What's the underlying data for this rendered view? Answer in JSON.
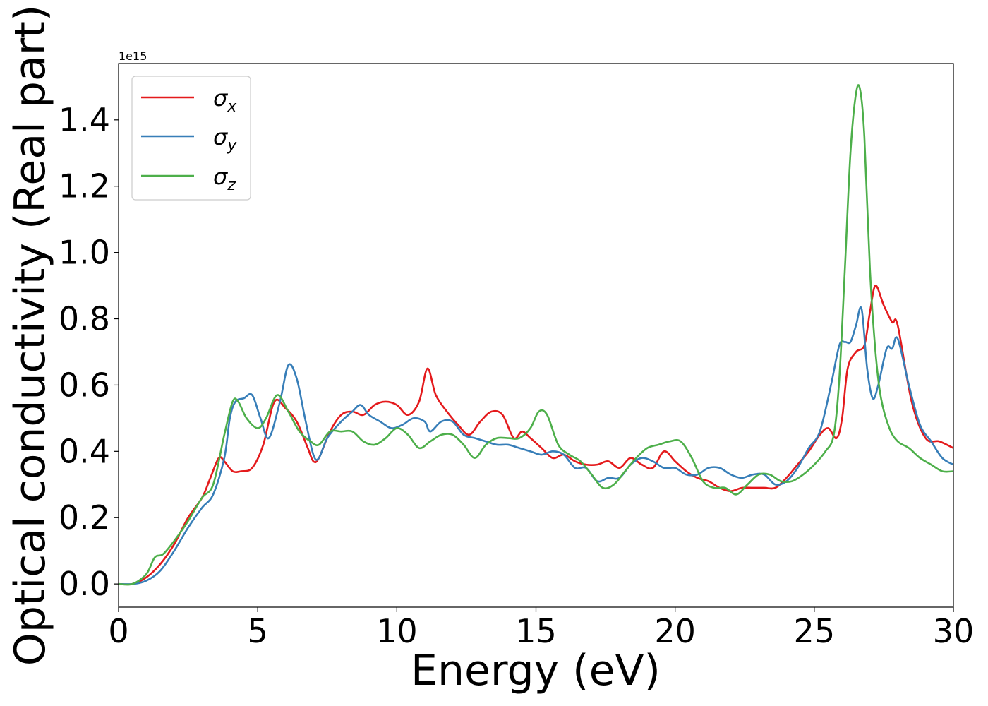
{
  "chart_data": {
    "type": "line",
    "xlabel": "Energy (eV)",
    "ylabel": "Optical conductivity (Real part)",
    "y_offset_label": "1e15",
    "y_multiplier": 1000000000000000.0,
    "xlim": [
      0,
      30
    ],
    "ylim": [
      -0.07,
      1.57
    ],
    "xticks": [
      0,
      5,
      10,
      15,
      20,
      25,
      30
    ],
    "yticks": [
      0.0,
      0.2,
      0.4,
      0.6,
      0.8,
      1.0,
      1.2,
      1.4
    ],
    "xtick_labels": [
      "0",
      "5",
      "10",
      "15",
      "20",
      "25",
      "30"
    ],
    "ytick_labels": [
      "0.0",
      "0.2",
      "0.4",
      "0.6",
      "0.8",
      "1.0",
      "1.2",
      "1.4"
    ],
    "grid": false,
    "legend_position": "top-left",
    "series": [
      {
        "name": "σx",
        "label_main": "σ",
        "label_sub": "x",
        "color": "#e41a1c",
        "x": [
          0,
          0.5,
          1,
          1.5,
          2,
          2.5,
          3,
          3.3,
          3.6,
          3.8,
          4.1,
          4.4,
          4.8,
          5.2,
          5.6,
          6,
          6.4,
          6.8,
          7,
          7.2,
          7.6,
          8,
          8.4,
          8.8,
          9.2,
          9.6,
          10,
          10.4,
          10.8,
          11.1,
          11.4,
          11.8,
          12.2,
          12.6,
          13,
          13.4,
          13.8,
          14.2,
          14.5,
          14.8,
          15.2,
          15.6,
          16,
          16.4,
          16.8,
          17.2,
          17.6,
          18,
          18.4,
          18.8,
          19.2,
          19.6,
          20,
          20.4,
          20.8,
          21.2,
          21.6,
          22,
          22.4,
          22.8,
          23.2,
          23.6,
          24,
          24.4,
          24.8,
          25.2,
          25.5,
          25.8,
          26,
          26.2,
          26.5,
          26.8,
          27,
          27.2,
          27.5,
          27.8,
          28,
          28.5,
          29,
          29.5,
          30
        ],
        "y": [
          0.0,
          0.0,
          0.02,
          0.06,
          0.12,
          0.2,
          0.26,
          0.32,
          0.38,
          0.37,
          0.34,
          0.34,
          0.35,
          0.42,
          0.55,
          0.53,
          0.49,
          0.41,
          0.37,
          0.38,
          0.46,
          0.51,
          0.52,
          0.51,
          0.54,
          0.55,
          0.54,
          0.51,
          0.55,
          0.65,
          0.57,
          0.52,
          0.48,
          0.45,
          0.49,
          0.52,
          0.51,
          0.44,
          0.46,
          0.44,
          0.41,
          0.38,
          0.39,
          0.37,
          0.36,
          0.36,
          0.37,
          0.35,
          0.38,
          0.36,
          0.35,
          0.4,
          0.37,
          0.34,
          0.32,
          0.31,
          0.29,
          0.28,
          0.29,
          0.29,
          0.29,
          0.29,
          0.32,
          0.36,
          0.4,
          0.45,
          0.47,
          0.44,
          0.5,
          0.65,
          0.7,
          0.72,
          0.82,
          0.9,
          0.84,
          0.79,
          0.78,
          0.55,
          0.44,
          0.43,
          0.41
        ]
      },
      {
        "name": "σy",
        "label_main": "σ",
        "label_sub": "y",
        "color": "#377eb8",
        "x": [
          0,
          0.5,
          1,
          1.5,
          2,
          2.5,
          3,
          3.4,
          3.8,
          4,
          4.2,
          4.5,
          4.8,
          5.1,
          5.4,
          5.8,
          6.1,
          6.4,
          6.7,
          7,
          7.2,
          7.5,
          8,
          8.4,
          8.7,
          9,
          9.4,
          9.8,
          10.2,
          10.6,
          11,
          11.2,
          11.6,
          12,
          12.4,
          12.8,
          13.2,
          13.6,
          14,
          14.4,
          14.8,
          15.2,
          15.6,
          16,
          16.4,
          16.8,
          17.2,
          17.6,
          18,
          18.4,
          18.8,
          19.2,
          19.6,
          20,
          20.4,
          20.8,
          21.2,
          21.6,
          22,
          22.4,
          22.8,
          23.2,
          23.6,
          24,
          24.4,
          24.8,
          25.2,
          25.6,
          25.9,
          26.1,
          26.3,
          26.5,
          26.7,
          26.9,
          27.1,
          27.3,
          27.6,
          27.8,
          28,
          28.4,
          28.8,
          29.2,
          29.6,
          30
        ],
        "y": [
          0.0,
          0.0,
          0.01,
          0.04,
          0.1,
          0.17,
          0.23,
          0.27,
          0.38,
          0.5,
          0.55,
          0.56,
          0.57,
          0.5,
          0.44,
          0.55,
          0.66,
          0.62,
          0.5,
          0.39,
          0.38,
          0.44,
          0.49,
          0.52,
          0.54,
          0.51,
          0.49,
          0.47,
          0.48,
          0.5,
          0.49,
          0.46,
          0.49,
          0.49,
          0.45,
          0.44,
          0.43,
          0.42,
          0.42,
          0.41,
          0.4,
          0.39,
          0.4,
          0.39,
          0.35,
          0.35,
          0.31,
          0.32,
          0.32,
          0.36,
          0.38,
          0.37,
          0.35,
          0.35,
          0.33,
          0.33,
          0.35,
          0.35,
          0.33,
          0.32,
          0.33,
          0.33,
          0.3,
          0.31,
          0.35,
          0.41,
          0.46,
          0.6,
          0.72,
          0.73,
          0.73,
          0.78,
          0.83,
          0.65,
          0.56,
          0.6,
          0.71,
          0.71,
          0.74,
          0.6,
          0.48,
          0.43,
          0.38,
          0.36
        ]
      },
      {
        "name": "σz",
        "label_main": "σ",
        "label_sub": "z",
        "color": "#4daf4a",
        "x": [
          0,
          0.5,
          1,
          1.3,
          1.6,
          2,
          2.5,
          3,
          3.4,
          3.8,
          4.1,
          4.3,
          4.6,
          5,
          5.3,
          5.7,
          6.1,
          6.5,
          6.9,
          7.2,
          7.6,
          8,
          8.4,
          8.8,
          9.2,
          9.6,
          10,
          10.4,
          10.8,
          11.2,
          11.6,
          12,
          12.4,
          12.8,
          13.2,
          13.6,
          14,
          14.4,
          14.8,
          15.1,
          15.4,
          15.8,
          16.2,
          16.6,
          17,
          17.4,
          17.8,
          18.2,
          18.6,
          19,
          19.4,
          19.8,
          20.2,
          20.6,
          21,
          21.4,
          21.8,
          22.2,
          22.6,
          23,
          23.4,
          23.8,
          24.2,
          24.6,
          25,
          25.4,
          25.7,
          25.9,
          26.1,
          26.3,
          26.5,
          26.65,
          26.8,
          27,
          27.2,
          27.4,
          27.7,
          28,
          28.4,
          28.8,
          29.2,
          29.6,
          30
        ],
        "y": [
          0.0,
          0.0,
          0.03,
          0.08,
          0.09,
          0.13,
          0.19,
          0.26,
          0.3,
          0.45,
          0.55,
          0.55,
          0.5,
          0.47,
          0.5,
          0.57,
          0.52,
          0.46,
          0.43,
          0.42,
          0.46,
          0.46,
          0.46,
          0.43,
          0.42,
          0.44,
          0.47,
          0.45,
          0.41,
          0.43,
          0.45,
          0.45,
          0.42,
          0.38,
          0.42,
          0.44,
          0.44,
          0.44,
          0.47,
          0.52,
          0.51,
          0.42,
          0.39,
          0.37,
          0.33,
          0.29,
          0.3,
          0.34,
          0.38,
          0.41,
          0.42,
          0.43,
          0.43,
          0.38,
          0.31,
          0.29,
          0.29,
          0.27,
          0.3,
          0.33,
          0.33,
          0.31,
          0.31,
          0.33,
          0.36,
          0.4,
          0.45,
          0.62,
          0.95,
          1.3,
          1.48,
          1.49,
          1.35,
          0.95,
          0.7,
          0.56,
          0.47,
          0.43,
          0.41,
          0.38,
          0.36,
          0.34,
          0.34
        ]
      }
    ]
  }
}
